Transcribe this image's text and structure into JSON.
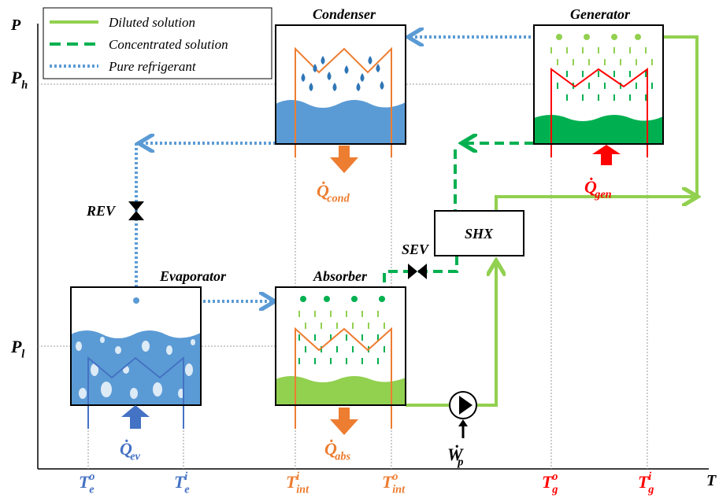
{
  "legend": {
    "items": [
      "Diluted solution",
      "Concentrated solution",
      "Pure refrigerant"
    ]
  },
  "axis": {
    "y_label": "P",
    "x_label": "T",
    "pressure_levels": [
      {
        "symbol": "P",
        "sub": "h"
      },
      {
        "symbol": "P",
        "sub": "l"
      }
    ]
  },
  "components": {
    "condenser": "Condenser",
    "generator": "Generator",
    "evaporator": "Evaporator",
    "absorber": "Absorber",
    "exchanger": "SHX"
  },
  "valves": [
    "REV",
    "SEV"
  ],
  "heat_flows": [
    {
      "symbol": "Q̇",
      "sub": "cond"
    },
    {
      "symbol": "Q̇",
      "sub": "gen"
    },
    {
      "symbol": "Q̇",
      "sub": "ev"
    },
    {
      "symbol": "Q̇",
      "sub": "abs"
    }
  ],
  "pump_work": {
    "symbol": "Ẇ",
    "sub": "p"
  },
  "temperatures": [
    {
      "symbol": "T",
      "sup": "o",
      "sub": "e"
    },
    {
      "symbol": "T",
      "sup": "i",
      "sub": "e"
    },
    {
      "symbol": "T",
      "sup": "i",
      "sub": "int"
    },
    {
      "symbol": "T",
      "sup": "o",
      "sub": "int"
    },
    {
      "symbol": "T",
      "sup": "o",
      "sub": "g"
    },
    {
      "symbol": "T",
      "sup": "i",
      "sub": "g"
    }
  ]
}
